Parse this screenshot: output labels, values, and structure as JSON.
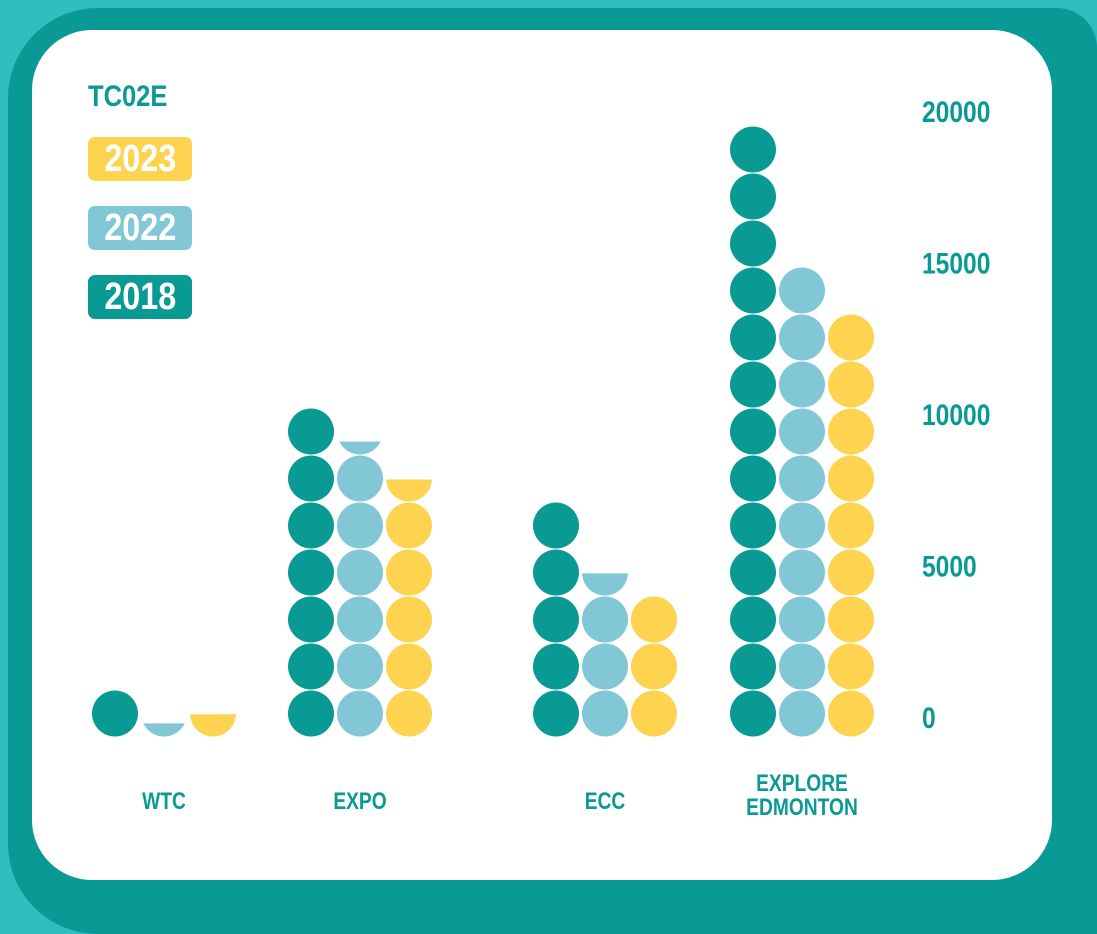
{
  "chart_data": {
    "type": "bar",
    "legend_title": "TC02E",
    "categories": [
      "WTC",
      "EXPO",
      "ECC",
      "EXPLORE EDMONTON"
    ],
    "series": [
      {
        "name": "2018",
        "color": "#0a9a94",
        "values": [
          1550,
          10850,
          7750,
          20150
        ]
      },
      {
        "name": "2022",
        "color": "#82c7d6",
        "values": [
          450,
          9750,
          5400,
          15500
        ]
      },
      {
        "name": "2023",
        "color": "#fdd34f",
        "values": [
          750,
          8500,
          4650,
          13950
        ]
      }
    ],
    "ylim": [
      0,
      20000
    ],
    "yticks": [
      0,
      5000,
      10000,
      15000,
      20000
    ],
    "legend": "upper left"
  }
}
